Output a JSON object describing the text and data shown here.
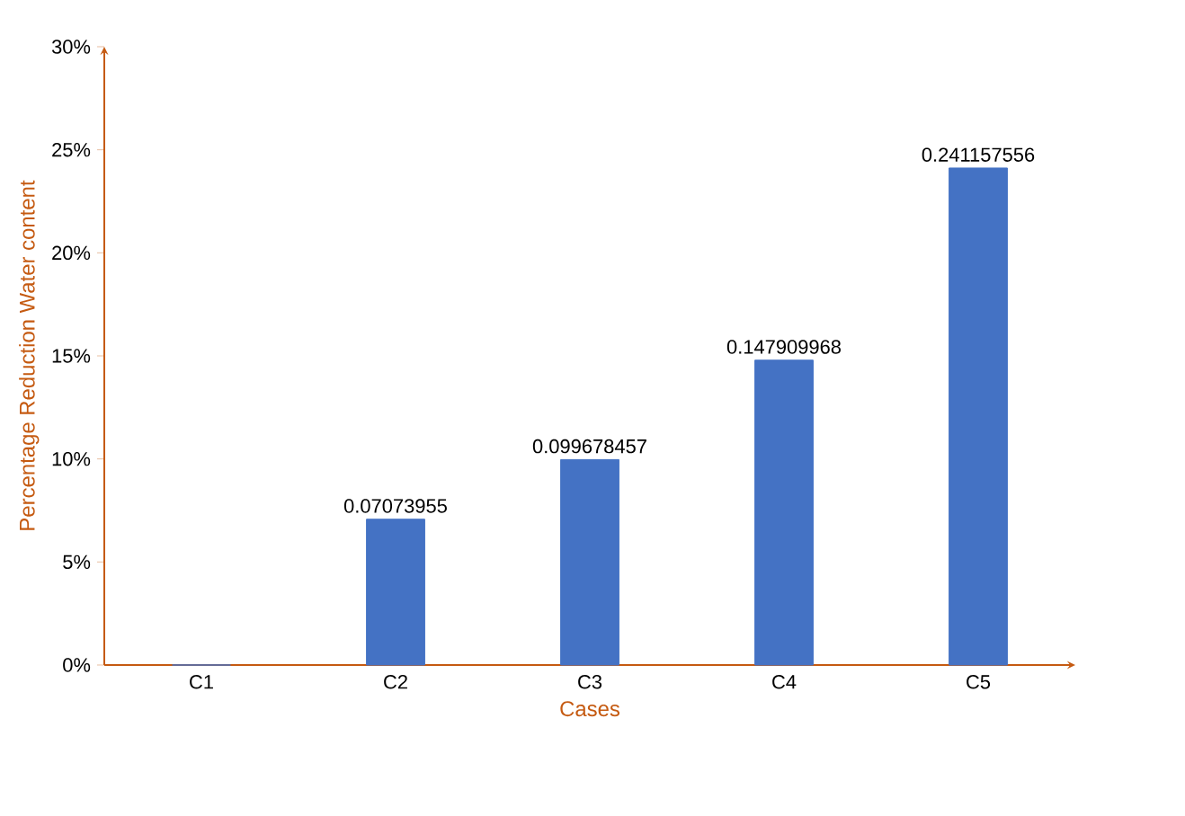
{
  "chart_data": {
    "type": "bar",
    "xlabel": "Cases",
    "ylabel": "Percentage Reduction Water content",
    "categories": [
      "C1",
      "C2",
      "C3",
      "C4",
      "C5"
    ],
    "values": [
      0,
      0.07073955,
      0.099678457,
      0.147909968,
      0.241157556
    ],
    "value_labels": [
      null,
      "0.07073955",
      "0.099678457",
      "0.147909968",
      "0.241157556"
    ],
    "color": "#4472c4",
    "ylim": [
      0,
      0.3
    ],
    "yticks": [
      {
        "value": 0,
        "label": "0%"
      },
      {
        "value": 0.05,
        "label": "5%"
      },
      {
        "value": 0.1,
        "label": "10%"
      },
      {
        "value": 0.15,
        "label": "15%"
      },
      {
        "value": 0.2,
        "label": "20%"
      },
      {
        "value": 0.25,
        "label": "25%"
      },
      {
        "value": 0.3,
        "label": "30%"
      }
    ]
  }
}
